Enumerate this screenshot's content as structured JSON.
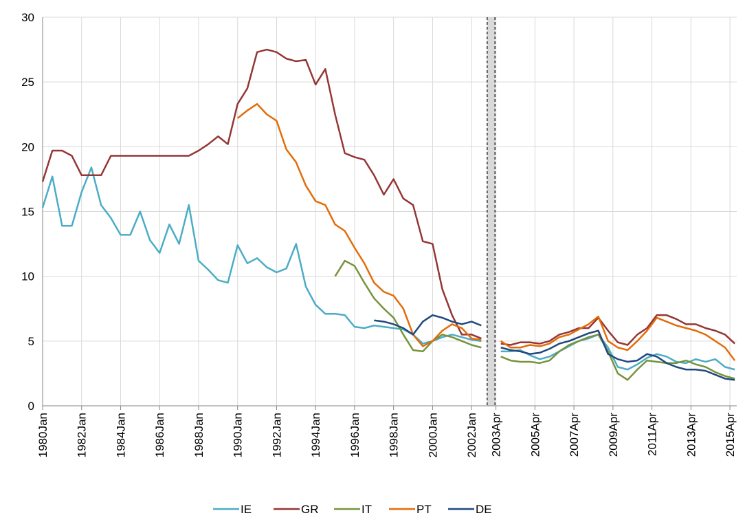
{
  "chart_data": {
    "type": "line",
    "x": [
      1980.0,
      1980.5,
      1981.0,
      1981.5,
      1982.0,
      1982.5,
      1983.0,
      1983.5,
      1984.0,
      1984.5,
      1985.0,
      1985.5,
      1986.0,
      1986.5,
      1987.0,
      1987.5,
      1988.0,
      1988.5,
      1989.0,
      1989.5,
      1990.0,
      1990.5,
      1991.0,
      1991.5,
      1992.0,
      1992.5,
      1993.0,
      1993.5,
      1994.0,
      1994.5,
      1995.0,
      1995.5,
      1996.0,
      1996.5,
      1997.0,
      1997.5,
      1998.0,
      1998.5,
      1999.0,
      1999.5,
      2000.0,
      2000.5,
      2001.0,
      2001.5,
      2002.0,
      2002.5,
      2003.0,
      2003.5,
      2004.0,
      2004.5,
      2005.0,
      2005.5,
      2006.0,
      2006.5,
      2007.0,
      2007.5,
      2008.0,
      2008.5,
      2009.0,
      2009.5,
      2010.0,
      2010.5,
      2011.0,
      2011.5,
      2012.0,
      2012.5,
      2013.0,
      2013.5,
      2014.0,
      2014.5,
      2015.0,
      2015.5
    ],
    "series": [
      {
        "name": "IE",
        "color": "#4bacc6",
        "values": [
          15.3,
          17.7,
          13.9,
          13.9,
          16.5,
          18.4,
          15.5,
          14.5,
          13.2,
          13.2,
          15.0,
          12.8,
          11.8,
          14.0,
          12.5,
          15.5,
          11.2,
          10.5,
          9.7,
          9.5,
          12.4,
          11.0,
          11.4,
          10.7,
          10.3,
          10.6,
          12.5,
          9.2,
          7.8,
          7.1,
          7.1,
          7.0,
          6.1,
          6.0,
          6.2,
          6.1,
          6.0,
          5.9,
          5.5,
          4.8,
          5.0,
          5.3,
          5.5,
          5.3,
          5.1,
          5.0,
          null,
          4.2,
          4.2,
          4.3,
          3.9,
          3.6,
          3.8,
          4.2,
          4.6,
          5.0,
          5.2,
          5.5,
          4.5,
          3.0,
          2.8,
          3.2,
          3.7,
          4.0,
          3.8,
          3.4,
          3.3,
          3.6,
          3.4,
          3.6,
          3.0,
          2.8
        ]
      },
      {
        "name": "GR",
        "color": "#943634",
        "values": [
          17.3,
          19.7,
          19.7,
          19.3,
          17.8,
          17.8,
          17.8,
          19.3,
          19.3,
          19.3,
          19.3,
          19.3,
          19.3,
          19.3,
          19.3,
          19.3,
          19.7,
          20.2,
          20.8,
          20.2,
          23.3,
          24.5,
          27.3,
          27.5,
          27.3,
          26.8,
          26.6,
          26.7,
          24.8,
          26.0,
          22.5,
          19.5,
          19.2,
          19.0,
          17.8,
          16.3,
          17.5,
          16.0,
          15.5,
          12.7,
          12.5,
          9.0,
          7.0,
          5.5,
          5.5,
          5.2,
          null,
          4.8,
          4.7,
          4.9,
          4.9,
          4.8,
          5.0,
          5.5,
          5.7,
          6.0,
          6.0,
          6.8,
          5.8,
          4.9,
          4.7,
          5.5,
          6.0,
          7.0,
          7.0,
          6.7,
          6.3,
          6.3,
          6.0,
          5.8,
          5.5,
          4.8
        ]
      },
      {
        "name": "IT",
        "color": "#77933c",
        "values": [
          null,
          null,
          null,
          null,
          null,
          null,
          null,
          null,
          null,
          null,
          null,
          null,
          null,
          null,
          null,
          null,
          null,
          null,
          null,
          null,
          null,
          null,
          null,
          null,
          null,
          null,
          null,
          null,
          null,
          null,
          10.0,
          11.2,
          10.8,
          9.5,
          8.3,
          7.5,
          6.8,
          5.5,
          4.3,
          4.2,
          5.0,
          5.5,
          5.3,
          5.0,
          4.7,
          4.5,
          null,
          3.8,
          3.5,
          3.4,
          3.4,
          3.3,
          3.5,
          4.2,
          4.7,
          5.0,
          5.3,
          5.5,
          4.2,
          2.5,
          2.0,
          2.8,
          3.5,
          3.4,
          3.3,
          3.3,
          3.5,
          3.2,
          3.0,
          2.6,
          2.3,
          2.1
        ]
      },
      {
        "name": "PT",
        "color": "#e36c09",
        "values": [
          null,
          null,
          null,
          null,
          null,
          null,
          null,
          null,
          null,
          null,
          null,
          null,
          null,
          null,
          null,
          null,
          null,
          null,
          null,
          null,
          22.2,
          22.8,
          23.3,
          22.5,
          22.0,
          19.8,
          18.8,
          17.0,
          15.8,
          15.5,
          14.0,
          13.5,
          12.2,
          11.0,
          9.5,
          8.8,
          8.5,
          7.5,
          5.5,
          4.6,
          5.0,
          5.8,
          6.3,
          6.0,
          5.2,
          5.1,
          null,
          5.0,
          4.5,
          4.5,
          4.7,
          4.6,
          4.8,
          5.3,
          5.5,
          5.9,
          6.3,
          6.9,
          5.0,
          4.5,
          4.3,
          5.0,
          5.8,
          6.8,
          6.5,
          6.2,
          6.0,
          5.8,
          5.5,
          5.0,
          4.5,
          3.5
        ]
      },
      {
        "name": "DE",
        "color": "#1f497d",
        "values": [
          null,
          null,
          null,
          null,
          null,
          null,
          null,
          null,
          null,
          null,
          null,
          null,
          null,
          null,
          null,
          null,
          null,
          null,
          null,
          null,
          null,
          null,
          null,
          null,
          null,
          null,
          null,
          null,
          null,
          null,
          null,
          null,
          null,
          null,
          6.6,
          6.5,
          6.3,
          6.0,
          5.5,
          6.5,
          7.0,
          6.8,
          6.5,
          6.3,
          6.5,
          6.2,
          null,
          4.5,
          4.3,
          4.2,
          4.0,
          4.1,
          4.4,
          4.8,
          5.0,
          5.3,
          5.6,
          5.8,
          4.0,
          3.6,
          3.4,
          3.5,
          4.0,
          3.8,
          3.3,
          3.0,
          2.8,
          2.8,
          2.7,
          2.4,
          2.1,
          2.0
        ]
      }
    ],
    "xlim": [
      1980,
      2015.6
    ],
    "xticks": [
      {
        "value": 1980,
        "label": "1980Jan"
      },
      {
        "value": 1982,
        "label": "1982Jan"
      },
      {
        "value": 1984,
        "label": "1984Jan"
      },
      {
        "value": 1986,
        "label": "1986Jan"
      },
      {
        "value": 1988,
        "label": "1988Jan"
      },
      {
        "value": 1990,
        "label": "1990Jan"
      },
      {
        "value": 1992,
        "label": "1992Jan"
      },
      {
        "value": 1994,
        "label": "1994Jan"
      },
      {
        "value": 1996,
        "label": "1996Jan"
      },
      {
        "value": 1998,
        "label": "1998Jan"
      },
      {
        "value": 2000,
        "label": "2000Jan"
      },
      {
        "value": 2002,
        "label": "2002Jan"
      },
      {
        "value": 2003.25,
        "label": "2003Apr"
      },
      {
        "value": 2005.25,
        "label": "2005Apr"
      },
      {
        "value": 2007.25,
        "label": "2007Apr"
      },
      {
        "value": 2009.25,
        "label": "2009Apr"
      },
      {
        "value": 2011.25,
        "label": "2011Apr"
      },
      {
        "value": 2013.25,
        "label": "2013Apr"
      },
      {
        "value": 2015.25,
        "label": "2015Apr"
      }
    ],
    "ylim": [
      0,
      30
    ],
    "yticks": [
      0,
      5,
      10,
      15,
      20,
      25,
      30
    ],
    "shaded_region": [
      2002.8,
      2003.2
    ],
    "grid": true,
    "legend": "bottom"
  }
}
